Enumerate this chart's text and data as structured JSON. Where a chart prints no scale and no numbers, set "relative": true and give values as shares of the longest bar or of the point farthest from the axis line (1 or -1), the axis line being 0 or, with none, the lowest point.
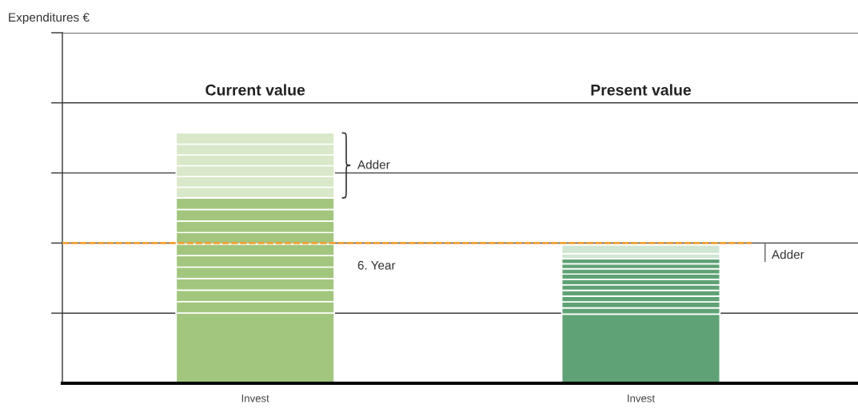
{
  "chart_data": {
    "type": "bar",
    "stacked": true,
    "relative": true,
    "categories": [
      "Invest",
      "Invest"
    ],
    "series": [
      {
        "colors": [
          "#a3c67e",
          "#5fa275"
        ],
        "values": [
          0.28,
          0.276
        ]
      },
      {
        "colors": [
          "#a3c67e",
          "#5fa275"
        ],
        "values": [
          0.046,
          0.025
        ]
      },
      {
        "colors": [
          "#a3c67e",
          "#5fa275"
        ],
        "values": [
          0.046,
          0.024
        ]
      },
      {
        "colors": [
          "#a3c67e",
          "#5fa275"
        ],
        "values": [
          0.046,
          0.023
        ]
      },
      {
        "colors": [
          "#a3c67e",
          "#5fa275"
        ],
        "values": [
          0.046,
          0.023
        ]
      },
      {
        "colors": [
          "#a3c67e",
          "#5fa275"
        ],
        "values": [
          0.046,
          0.022
        ]
      },
      {
        "colors": [
          "#a3c67e",
          "#5fa275"
        ],
        "values": [
          0.046,
          0.022
        ]
      },
      {
        "colors": [
          "#a3c67e",
          "#5fa275"
        ],
        "values": [
          0.046,
          0.021
        ]
      },
      {
        "colors": [
          "#a3c67e",
          "#5fa275"
        ],
        "values": [
          0.046,
          0.021
        ]
      },
      {
        "colors": [
          "#a3c67e",
          "#5fa275"
        ],
        "values": [
          0.046,
          0.02
        ]
      },
      {
        "colors": [
          "#a3c67e",
          "#5fa275"
        ],
        "values": [
          0.046,
          0.02
        ]
      },
      {
        "colors": [
          "#d9e8c9",
          "#d0e5d2"
        ],
        "values": [
          0.043,
          0.021
        ]
      },
      {
        "colors": [
          "#d9e8c9",
          "#d0e5d2"
        ],
        "values": [
          0.043,
          0.034
        ]
      },
      {
        "colors": [
          "#d9e8c9",
          "#d0e5d2"
        ],
        "values": [
          0.043,
          null
        ]
      },
      {
        "colors": [
          "#d9e8c9",
          "#d0e5d2"
        ],
        "values": [
          0.043,
          null
        ]
      },
      {
        "colors": [
          "#d9e8c9",
          "#d0e5d2"
        ],
        "values": [
          0.043,
          null
        ]
      },
      {
        "colors": [
          "#d9e8c9",
          "#d0e5d2"
        ],
        "values": [
          0.045,
          null
        ]
      }
    ],
    "grid": "y",
    "tick_labels": "x",
    "ref_lines": [
      {
        "axis": "y",
        "value": 0.56,
        "label": "6. Year",
        "color": "#f0a030",
        "line_style": "dashed"
      }
    ],
    "annotations": [
      "Expenditures €",
      "Current value",
      "Present value",
      "Adder",
      "Adder"
    ]
  }
}
